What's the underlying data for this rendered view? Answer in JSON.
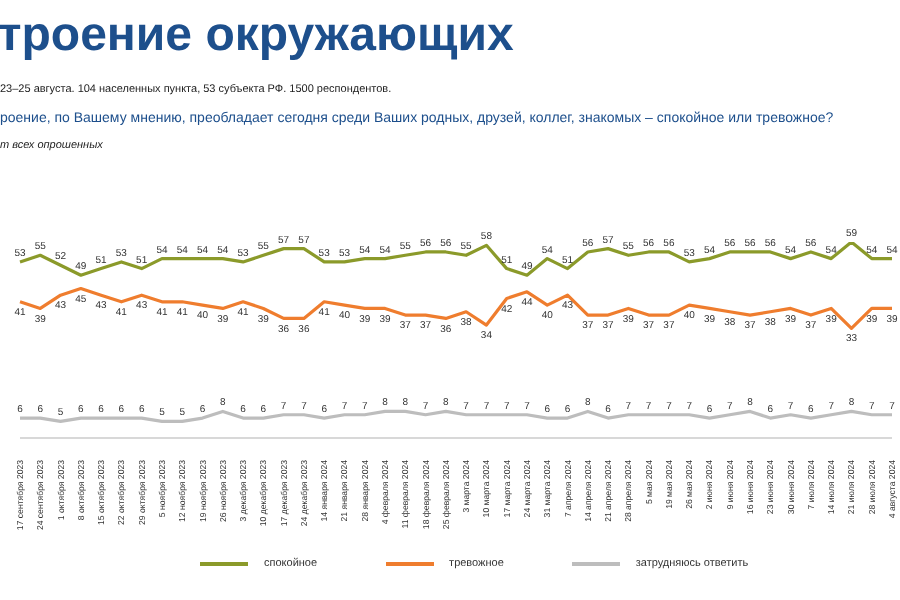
{
  "chart_data": {
    "type": "line",
    "title": "троение окружающих",
    "subtitle": "23–25 августа. 104 населенных пункта, 53 субъекта РФ. 1500 респондентов.",
    "annotations": [
      "роение, по Вашему мнению, преобладает сегодня среди Ваших родных, друзей, коллег, знакомых – спокойное или тревожное?",
      "т всех опрошенных"
    ],
    "categories": [
      "17 сентября 2023",
      "24 сентября 2023",
      "1 октября 2023",
      "8 октября 2023",
      "15 октября 2023",
      "22 октября 2023",
      "29 октября 2023",
      "5 ноября 2023",
      "12 ноября 2023",
      "19 ноября 2023",
      "26 ноября 2023",
      "3 декабря 2023",
      "10 декабря 2023",
      "17 декабря 2023",
      "24 декабря 2023",
      "14 января 2024",
      "21 января 2024",
      "28 января 2024",
      "4 февраля 2024",
      "11 февраля 2024",
      "18 февраля 2024",
      "25 февраля 2024",
      "3 марта 2024",
      "10 марта 2024",
      "17 марта 2024",
      "24 марта 2024",
      "31 марта 2024",
      "7 апреля 2024",
      "14 апреля 2024",
      "21 апреля 2024",
      "28 апреля 2024",
      "5 мая 2024",
      "19 мая 2024",
      "26 мая 2024",
      "2 июня 2024",
      "9 июня 2024",
      "16 июня 2024",
      "23 июня 2024",
      "30 июня 2024",
      "7 июля 2024",
      "14 июля 2024",
      "21 июля 2024",
      "28 июля 2024",
      "4 августа 2024"
    ],
    "series": [
      {
        "name": "спокойное",
        "color": "#8b9a2a",
        "values": [
          53,
          55,
          52,
          49,
          51,
          53,
          51,
          54,
          54,
          54,
          54,
          53,
          55,
          57,
          57,
          53,
          53,
          54,
          54,
          55,
          56,
          56,
          55,
          58,
          51,
          49,
          54,
          51,
          56,
          57,
          55,
          56,
          56,
          53,
          54,
          56,
          56,
          56,
          54,
          56,
          54,
          59,
          54,
          54
        ]
      },
      {
        "name": "тревожное",
        "color": "#ef7d2e",
        "values": [
          41,
          39,
          43,
          45,
          43,
          41,
          43,
          41,
          41,
          40,
          39,
          41,
          39,
          36,
          36,
          41,
          40,
          39,
          39,
          37,
          37,
          36,
          38,
          34,
          42,
          44,
          40,
          43,
          37,
          37,
          39,
          37,
          37,
          40,
          39,
          38,
          37,
          38,
          39,
          37,
          39,
          33,
          39,
          39
        ]
      },
      {
        "name": "затрудняюсь ответить",
        "color": "#bdbdbd",
        "values": [
          6,
          6,
          5,
          6,
          6,
          6,
          6,
          5,
          5,
          6,
          8,
          6,
          6,
          7,
          7,
          6,
          7,
          7,
          8,
          8,
          7,
          8,
          7,
          7,
          7,
          7,
          6,
          6,
          8,
          6,
          7,
          7,
          7,
          7,
          6,
          7,
          8,
          6,
          7,
          6,
          7,
          8,
          7,
          7
        ]
      }
    ],
    "data_labels": true,
    "legend": "bottom",
    "grid": false,
    "marker": "none"
  }
}
